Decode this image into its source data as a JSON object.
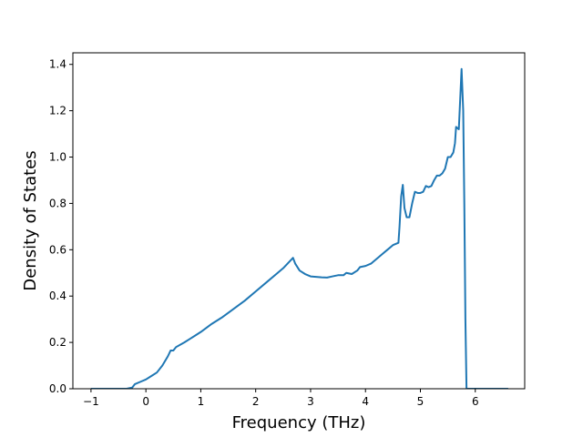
{
  "chart_data": {
    "type": "line",
    "title": "",
    "xlabel": "Frequency (THz)",
    "ylabel": "Density of States",
    "xlim": [
      -1.33,
      6.9
    ],
    "ylim": [
      0.0,
      1.45
    ],
    "xticks": [
      -1,
      0,
      1,
      2,
      3,
      4,
      5,
      6
    ],
    "xtick_labels": [
      "−1",
      "0",
      "1",
      "2",
      "3",
      "4",
      "5",
      "6"
    ],
    "yticks": [
      0.0,
      0.2,
      0.4,
      0.6,
      0.8,
      1.0,
      1.2,
      1.4
    ],
    "ytick_labels": [
      "0.0",
      "0.2",
      "0.4",
      "0.6",
      "0.8",
      "1.0",
      "1.2",
      "1.4"
    ],
    "grid": false,
    "legend": "none",
    "series": [
      {
        "color": "#1f77b4",
        "x": [
          -1.0,
          -0.35,
          -0.25,
          -0.2,
          -0.1,
          0.0,
          0.1,
          0.2,
          0.3,
          0.4,
          0.45,
          0.5,
          0.55,
          0.7,
          0.8,
          0.9,
          1.0,
          1.2,
          1.4,
          1.6,
          1.8,
          2.0,
          2.2,
          2.4,
          2.5,
          2.6,
          2.68,
          2.72,
          2.8,
          2.9,
          3.0,
          3.1,
          3.2,
          3.3,
          3.4,
          3.5,
          3.6,
          3.65,
          3.75,
          3.85,
          3.9,
          4.0,
          4.1,
          4.2,
          4.3,
          4.4,
          4.5,
          4.6,
          4.62,
          4.65,
          4.68,
          4.71,
          4.75,
          4.8,
          4.85,
          4.9,
          4.95,
          5.0,
          5.05,
          5.1,
          5.15,
          5.2,
          5.25,
          5.3,
          5.35,
          5.4,
          5.45,
          5.5,
          5.55,
          5.6,
          5.63,
          5.65,
          5.7,
          5.75,
          5.78,
          5.8,
          5.82,
          5.84,
          5.86,
          5.875,
          5.9,
          5.93,
          5.95,
          6.0,
          6.3,
          6.6
        ],
        "y": [
          0.0,
          0.0,
          0.005,
          0.02,
          0.03,
          0.04,
          0.055,
          0.07,
          0.1,
          0.14,
          0.165,
          0.165,
          0.18,
          0.2,
          0.215,
          0.23,
          0.245,
          0.28,
          0.31,
          0.345,
          0.38,
          0.42,
          0.46,
          0.5,
          0.52,
          0.545,
          0.565,
          0.54,
          0.51,
          0.495,
          0.485,
          0.483,
          0.481,
          0.48,
          0.485,
          0.49,
          0.49,
          0.5,
          0.495,
          0.51,
          0.525,
          0.53,
          0.54,
          0.56,
          0.58,
          0.6,
          0.62,
          0.63,
          0.7,
          0.83,
          0.88,
          0.78,
          0.74,
          0.74,
          0.8,
          0.85,
          0.845,
          0.845,
          0.85,
          0.875,
          0.87,
          0.875,
          0.9,
          0.92,
          0.92,
          0.93,
          0.95,
          1.0,
          1.0,
          1.02,
          1.06,
          1.13,
          1.12,
          1.38,
          1.2,
          0.8,
          0.3,
          0.0,
          0.0,
          0.0,
          0.0,
          0.0,
          0.0,
          0.0,
          0.0,
          0.0
        ]
      }
    ]
  }
}
